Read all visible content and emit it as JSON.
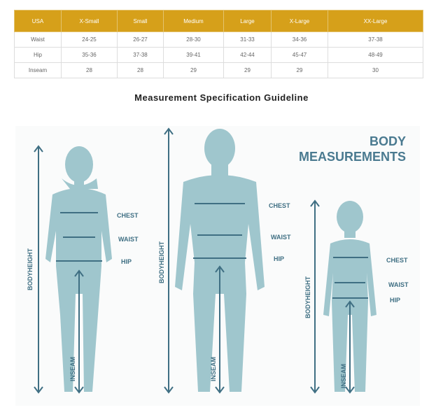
{
  "table": {
    "headers": [
      "USA",
      "X-Small",
      "Small",
      "Medium",
      "Large",
      "X-Large",
      "XX-Large"
    ],
    "rows": [
      [
        "Waist",
        "24-25",
        "26-27",
        "28-30",
        "31-33",
        "34-36",
        "37-38"
      ],
      [
        "Hip",
        "35-36",
        "37-38",
        "39-41",
        "42-44",
        "45-47",
        "48-49"
      ],
      [
        "Inseam",
        "28",
        "28",
        "29",
        "29",
        "29",
        "30"
      ]
    ]
  },
  "title": "Measurement Specification Guideline",
  "figure": {
    "heading1": "BODY",
    "heading2": "MEASUREMENTS",
    "chest": "CHEST",
    "waist": "WAIST",
    "hip": "HIP",
    "bodyheight": "BODYHEIGHT",
    "inseam": "INSEAM",
    "colors": {
      "body": "#9fc6cd",
      "line": "#3f6f83",
      "header": "#d6a01a"
    }
  }
}
